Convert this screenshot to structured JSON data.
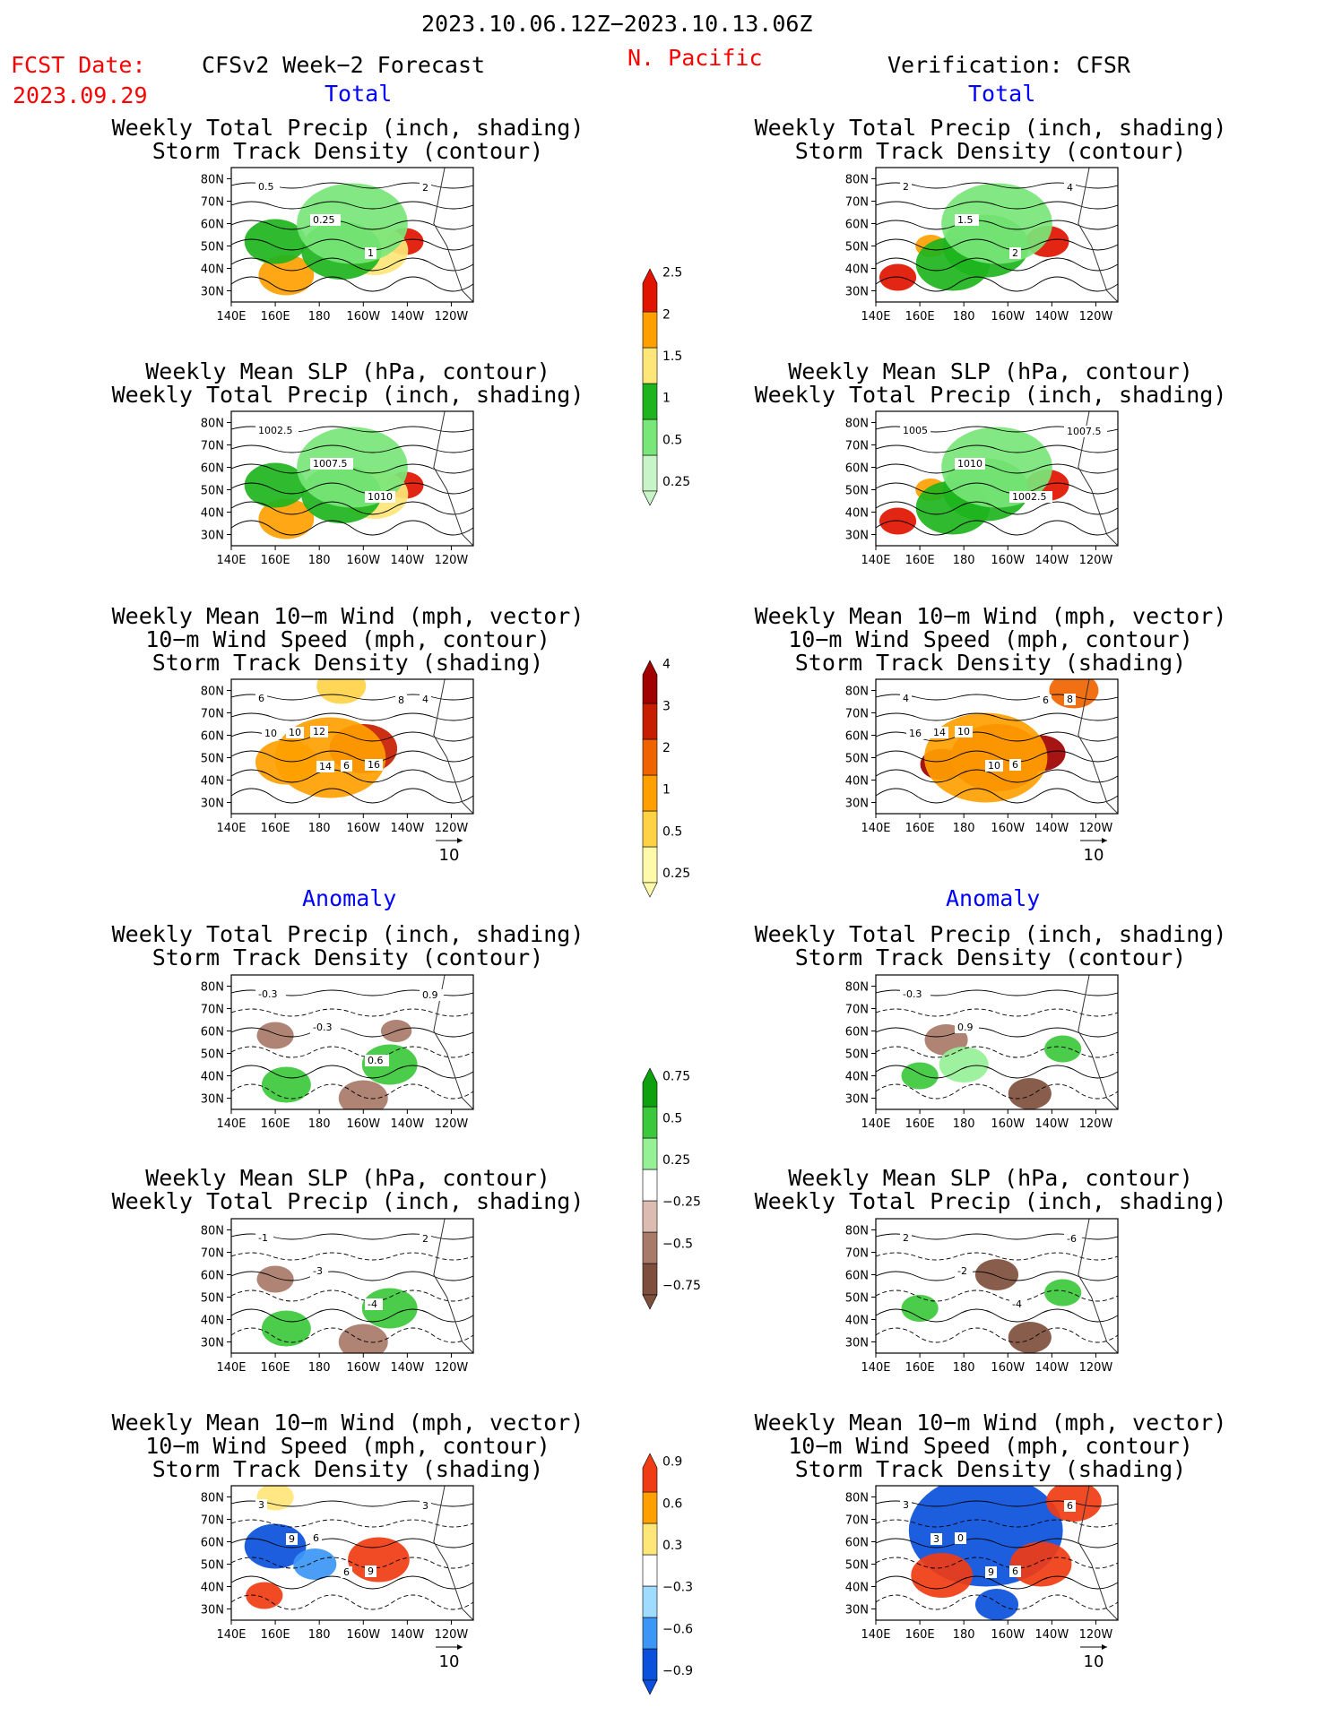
{
  "header": {
    "period": "2023.10.06.12Z−2023.10.13.06Z",
    "fcst_label": "FCST Date:",
    "fcst_date": "2023.09.29",
    "left_title": "CFSv2 Week−2 Forecast",
    "region": "N. Pacific",
    "right_title": "Verification: CFSR",
    "section_total": "Total",
    "section_anomaly": "Anomaly"
  },
  "panel_titles": {
    "precip_storm": [
      "Weekly Total Precip (inch, shading)",
      "Storm Track Density (contour)"
    ],
    "slp_precip": [
      "Weekly Mean SLP (hPa, contour)",
      "Weekly Total Precip (inch, shading)"
    ],
    "wind_storm": [
      "Weekly Mean 10−m Wind (mph, vector)",
      "10−m Wind Speed (mph, contour)",
      "Storm Track Density (shading)"
    ]
  },
  "axes": {
    "lat_ticks": [
      "80N",
      "70N",
      "60N",
      "50N",
      "40N",
      "30N"
    ],
    "lon_ticks": [
      "140E",
      "160E",
      "180",
      "160W",
      "140W",
      "120W"
    ],
    "vector_ref": "10"
  },
  "colors": {
    "precip_total": [
      "#c8f5c8",
      "#78e678",
      "#1eb41e",
      "#ffe678",
      "#ffa000",
      "#e11400"
    ],
    "storm_total": [
      "#fffaaa",
      "#ffd246",
      "#ffa000",
      "#f06400",
      "#c81e00",
      "#a00000"
    ],
    "precip_anom": [
      "#7e4f3d",
      "#a87a69",
      "#dcbcb0",
      "#ffffff",
      "#96f096",
      "#3cc83c",
      "#0fa00f"
    ],
    "storm_anom": [
      "#0a50dc",
      "#3c96f5",
      "#a0dcff",
      "#ffffff",
      "#ffe678",
      "#ffa000",
      "#f03c14"
    ]
  },
  "chart_data": [
    {
      "type": "heatmap",
      "title": "Weekly Total Precip (inch, shading) / Storm Track Density (contour)",
      "source": "CFSv2 Week-2 Forecast",
      "section": "Total",
      "lat_range": [
        25,
        85
      ],
      "lon_range": [
        140,
        250
      ],
      "contour_labels": [
        "0.5",
        "0.25",
        "1",
        "2"
      ],
      "colorbar": {
        "levels": [
          0.25,
          0.5,
          1,
          1.5,
          2,
          2.5
        ],
        "labels": [
          "0.25",
          "0.5",
          "1",
          "1.5",
          "2",
          "2.5"
        ]
      },
      "blobs": [
        {
          "lon": 219,
          "lat": 52,
          "r": 6,
          "c": 5
        },
        {
          "lon": 205,
          "lat": 48,
          "r": 11,
          "c": 3
        },
        {
          "lon": 165,
          "lat": 37,
          "r": 9,
          "c": 4
        },
        {
          "lon": 190,
          "lat": 48,
          "r": 13,
          "c": 2
        },
        {
          "lon": 160,
          "lat": 52,
          "r": 10,
          "c": 2
        },
        {
          "lon": 195,
          "lat": 60,
          "r": 18,
          "c": 1
        }
      ]
    },
    {
      "type": "heatmap",
      "title": "Weekly Total Precip (inch, shading) / Storm Track Density (contour)",
      "source": "Verification: CFSR",
      "section": "Total",
      "lat_range": [
        25,
        85
      ],
      "lon_range": [
        140,
        250
      ],
      "contour_labels": [
        "2",
        "1.5",
        "2",
        "4"
      ],
      "colorbar": {
        "levels": [
          0.25,
          0.5,
          1,
          1.5,
          2,
          2.5
        ],
        "labels": [
          "0.25",
          "0.5",
          "1",
          "1.5",
          "2",
          "2.5"
        ]
      },
      "blobs": [
        {
          "lon": 218,
          "lat": 52,
          "r": 7,
          "c": 5
        },
        {
          "lon": 150,
          "lat": 36,
          "r": 6,
          "c": 5
        },
        {
          "lon": 165,
          "lat": 50,
          "r": 5,
          "c": 4
        },
        {
          "lon": 190,
          "lat": 50,
          "r": 14,
          "c": 2
        },
        {
          "lon": 175,
          "lat": 42,
          "r": 12,
          "c": 2
        },
        {
          "lon": 195,
          "lat": 60,
          "r": 18,
          "c": 1
        }
      ]
    },
    {
      "type": "heatmap",
      "title": "Weekly Mean SLP (hPa, contour) / Weekly Total Precip (inch, shading)",
      "source": "CFSv2 Week-2 Forecast",
      "section": "Total",
      "lat_range": [
        25,
        85
      ],
      "lon_range": [
        140,
        250
      ],
      "contour_labels": [
        "1002.5",
        "1007.5",
        "1010"
      ],
      "colorbar": {
        "levels": [
          0.25,
          0.5,
          1,
          1.5,
          2,
          2.5
        ],
        "labels": [
          "0.25",
          "0.5",
          "1",
          "1.5",
          "2",
          "2.5"
        ]
      },
      "blobs": [
        {
          "lon": 219,
          "lat": 52,
          "r": 6,
          "c": 5
        },
        {
          "lon": 205,
          "lat": 48,
          "r": 11,
          "c": 3
        },
        {
          "lon": 165,
          "lat": 37,
          "r": 9,
          "c": 4
        },
        {
          "lon": 190,
          "lat": 48,
          "r": 13,
          "c": 2
        },
        {
          "lon": 160,
          "lat": 52,
          "r": 10,
          "c": 2
        },
        {
          "lon": 195,
          "lat": 60,
          "r": 18,
          "c": 1
        }
      ]
    },
    {
      "type": "heatmap",
      "title": "Weekly Mean SLP (hPa, contour) / Weekly Total Precip (inch, shading)",
      "source": "Verification: CFSR",
      "section": "Total",
      "lat_range": [
        25,
        85
      ],
      "lon_range": [
        140,
        250
      ],
      "contour_labels": [
        "1005",
        "1010",
        "1002.5",
        "1007.5"
      ],
      "colorbar": {
        "levels": [
          0.25,
          0.5,
          1,
          1.5,
          2,
          2.5
        ],
        "labels": [
          "0.25",
          "0.5",
          "1",
          "1.5",
          "2",
          "2.5"
        ]
      },
      "blobs": [
        {
          "lon": 218,
          "lat": 52,
          "r": 7,
          "c": 5
        },
        {
          "lon": 150,
          "lat": 36,
          "r": 6,
          "c": 5
        },
        {
          "lon": 165,
          "lat": 50,
          "r": 5,
          "c": 4
        },
        {
          "lon": 190,
          "lat": 50,
          "r": 14,
          "c": 2
        },
        {
          "lon": 175,
          "lat": 42,
          "r": 12,
          "c": 2
        },
        {
          "lon": 195,
          "lat": 60,
          "r": 18,
          "c": 1
        }
      ]
    },
    {
      "type": "heatmap",
      "title": "Weekly Mean 10-m Wind (mph, vector) / 10-m Wind Speed (mph, contour) / Storm Track Density (shading)",
      "source": "CFSv2 Week-2 Forecast",
      "section": "Total",
      "lat_range": [
        25,
        85
      ],
      "lon_range": [
        140,
        250
      ],
      "contour_labels": [
        "6",
        "12",
        "16",
        "4",
        "10",
        "6",
        "8",
        "10",
        "14"
      ],
      "vector_ref": 10,
      "colorbar": {
        "levels": [
          0.25,
          0.5,
          1,
          2,
          3,
          4
        ],
        "labels": [
          "0.25",
          "0.5",
          "1",
          "2",
          "3",
          "4"
        ]
      },
      "blobs": [
        {
          "lon": 200,
          "lat": 55,
          "r": 6,
          "c": 5
        },
        {
          "lon": 200,
          "lat": 54,
          "r": 11,
          "c": 4
        },
        {
          "lon": 165,
          "lat": 48,
          "r": 10,
          "c": 2
        },
        {
          "lon": 185,
          "lat": 50,
          "r": 18,
          "c": 2
        },
        {
          "lon": 190,
          "lat": 82,
          "r": 8,
          "c": 1
        }
      ]
    },
    {
      "type": "heatmap",
      "title": "Weekly Mean 10-m Wind (mph, vector) / 10-m Wind Speed (mph, contour) / Storm Track Density (shading)",
      "source": "Verification: CFSR",
      "section": "Total",
      "lat_range": [
        25,
        85
      ],
      "lon_range": [
        140,
        250
      ],
      "contour_labels": [
        "4",
        "10",
        "6",
        "8",
        "14",
        "10",
        "6",
        "16"
      ],
      "vector_ref": 10,
      "colorbar": {
        "levels": [
          0.25,
          0.5,
          1,
          2,
          3,
          4
        ],
        "labels": [
          "0.25",
          "0.5",
          "1",
          "2",
          "3",
          "4"
        ]
      },
      "blobs": [
        {
          "lon": 170,
          "lat": 47,
          "r": 7,
          "c": 5
        },
        {
          "lon": 215,
          "lat": 52,
          "r": 8,
          "c": 5
        },
        {
          "lon": 195,
          "lat": 50,
          "r": 15,
          "c": 4
        },
        {
          "lon": 230,
          "lat": 80,
          "r": 8,
          "c": 3
        },
        {
          "lon": 190,
          "lat": 50,
          "r": 20,
          "c": 2
        }
      ]
    },
    {
      "type": "heatmap",
      "title": "Weekly Total Precip (inch, shading) / Storm Track Density (contour)",
      "source": "CFSv2 Week-2 Forecast",
      "section": "Anomaly",
      "lat_range": [
        25,
        85
      ],
      "lon_range": [
        140,
        250
      ],
      "contour_labels": [
        "-0.3",
        "-0.3",
        "0.6",
        "0.9"
      ],
      "colorbar": {
        "levels": [
          -0.75,
          -0.5,
          -0.25,
          0.25,
          0.5,
          0.75
        ],
        "labels": [
          "−0.75",
          "−0.5",
          "−0.25",
          "0.25",
          "0.5",
          "0.75"
        ]
      },
      "blobs": [
        {
          "lon": 212,
          "lat": 45,
          "r": 9,
          "c": 5
        },
        {
          "lon": 165,
          "lat": 36,
          "r": 8,
          "c": 5
        },
        {
          "lon": 200,
          "lat": 30,
          "r": 8,
          "c": 1
        },
        {
          "lon": 160,
          "lat": 58,
          "r": 6,
          "c": 1
        },
        {
          "lon": 215,
          "lat": 60,
          "r": 5,
          "c": 1
        }
      ]
    },
    {
      "type": "heatmap",
      "title": "Weekly Total Precip (inch, shading) / Storm Track Density (contour)",
      "source": "Verification: CFSR",
      "section": "Anomaly",
      "lat_range": [
        25,
        85
      ],
      "lon_range": [
        140,
        250
      ],
      "contour_labels": [
        "-0.3",
        "0.9"
      ],
      "colorbar": {
        "levels": [
          -0.75,
          -0.5,
          -0.25,
          0.25,
          0.5,
          0.75
        ],
        "labels": [
          "−0.75",
          "−0.5",
          "−0.25",
          "0.25",
          "0.5",
          "0.75"
        ]
      },
      "blobs": [
        {
          "lon": 210,
          "lat": 32,
          "r": 7,
          "c": 0
        },
        {
          "lon": 172,
          "lat": 56,
          "r": 7,
          "c": 1
        },
        {
          "lon": 225,
          "lat": 52,
          "r": 6,
          "c": 5
        },
        {
          "lon": 180,
          "lat": 45,
          "r": 8,
          "c": 4
        },
        {
          "lon": 160,
          "lat": 40,
          "r": 6,
          "c": 5
        }
      ]
    },
    {
      "type": "heatmap",
      "title": "Weekly Mean SLP (hPa, contour) / Weekly Total Precip (inch, shading)",
      "source": "CFSv2 Week-2 Forecast",
      "section": "Anomaly",
      "lat_range": [
        25,
        85
      ],
      "lon_range": [
        140,
        250
      ],
      "contour_labels": [
        "-1",
        "-3",
        "-4",
        "2"
      ],
      "colorbar": {
        "levels": [
          -0.75,
          -0.5,
          -0.25,
          0.25,
          0.5,
          0.75
        ],
        "labels": [
          "−0.75",
          "−0.5",
          "−0.25",
          "0.25",
          "0.5",
          "0.75"
        ]
      },
      "blobs": [
        {
          "lon": 212,
          "lat": 45,
          "r": 9,
          "c": 5
        },
        {
          "lon": 165,
          "lat": 36,
          "r": 8,
          "c": 5
        },
        {
          "lon": 200,
          "lat": 30,
          "r": 8,
          "c": 1
        },
        {
          "lon": 160,
          "lat": 58,
          "r": 6,
          "c": 1
        }
      ]
    },
    {
      "type": "heatmap",
      "title": "Weekly Mean SLP (hPa, contour) / Weekly Total Precip (inch, shading)",
      "source": "Verification: CFSR",
      "section": "Anomaly",
      "lat_range": [
        25,
        85
      ],
      "lon_range": [
        140,
        250
      ],
      "contour_labels": [
        "2",
        "-2",
        "-4",
        "-6"
      ],
      "colorbar": {
        "levels": [
          -0.75,
          -0.5,
          -0.25,
          0.25,
          0.5,
          0.75
        ],
        "labels": [
          "−0.75",
          "−0.5",
          "−0.25",
          "0.25",
          "0.5",
          "0.75"
        ]
      },
      "blobs": [
        {
          "lon": 210,
          "lat": 32,
          "r": 7,
          "c": 0
        },
        {
          "lon": 195,
          "lat": 60,
          "r": 7,
          "c": 0
        },
        {
          "lon": 225,
          "lat": 52,
          "r": 6,
          "c": 5
        },
        {
          "lon": 160,
          "lat": 45,
          "r": 6,
          "c": 5
        }
      ]
    },
    {
      "type": "heatmap",
      "title": "Weekly Mean 10-m Wind (mph, vector) / 10-m Wind Speed (mph, contour) / Storm Track Density (shading)",
      "source": "CFSv2 Week-2 Forecast",
      "section": "Anomaly",
      "lat_range": [
        25,
        85
      ],
      "lon_range": [
        140,
        250
      ],
      "contour_labels": [
        "3",
        "6",
        "9",
        "3",
        "9",
        "6"
      ],
      "vector_ref": 10,
      "colorbar": {
        "levels": [
          -0.9,
          -0.6,
          -0.3,
          0.3,
          0.6,
          0.9
        ],
        "labels": [
          "−0.9",
          "−0.6",
          "−0.3",
          "0.3",
          "0.6",
          "0.9"
        ]
      },
      "blobs": [
        {
          "lon": 207,
          "lat": 52,
          "r": 10,
          "c": 6
        },
        {
          "lon": 160,
          "lat": 58,
          "r": 10,
          "c": 0
        },
        {
          "lon": 178,
          "lat": 50,
          "r": 7,
          "c": 1
        },
        {
          "lon": 155,
          "lat": 36,
          "r": 6,
          "c": 6
        },
        {
          "lon": 160,
          "lat": 80,
          "r": 6,
          "c": 4
        }
      ]
    },
    {
      "type": "heatmap",
      "title": "Weekly Mean 10-m Wind (mph, vector) / 10-m Wind Speed (mph, contour) / Storm Track Density (shading)",
      "source": "Verification: CFSR",
      "section": "Anomaly",
      "lat_range": [
        25,
        85
      ],
      "lon_range": [
        140,
        250
      ],
      "contour_labels": [
        "3",
        "0",
        "6",
        "6",
        "3",
        "9"
      ],
      "vector_ref": 10,
      "colorbar": {
        "levels": [
          -0.9,
          -0.6,
          -0.3,
          0.3,
          0.6,
          0.9
        ],
        "labels": [
          "−0.9",
          "−0.6",
          "−0.3",
          "0.3",
          "0.6",
          "0.9"
        ]
      },
      "blobs": [
        {
          "lon": 190,
          "lat": 65,
          "r": 25,
          "c": 0
        },
        {
          "lon": 170,
          "lat": 45,
          "r": 10,
          "c": 6
        },
        {
          "lon": 215,
          "lat": 50,
          "r": 10,
          "c": 6
        },
        {
          "lon": 230,
          "lat": 78,
          "r": 9,
          "c": 6
        },
        {
          "lon": 195,
          "lat": 32,
          "r": 7,
          "c": 0
        }
      ]
    }
  ]
}
